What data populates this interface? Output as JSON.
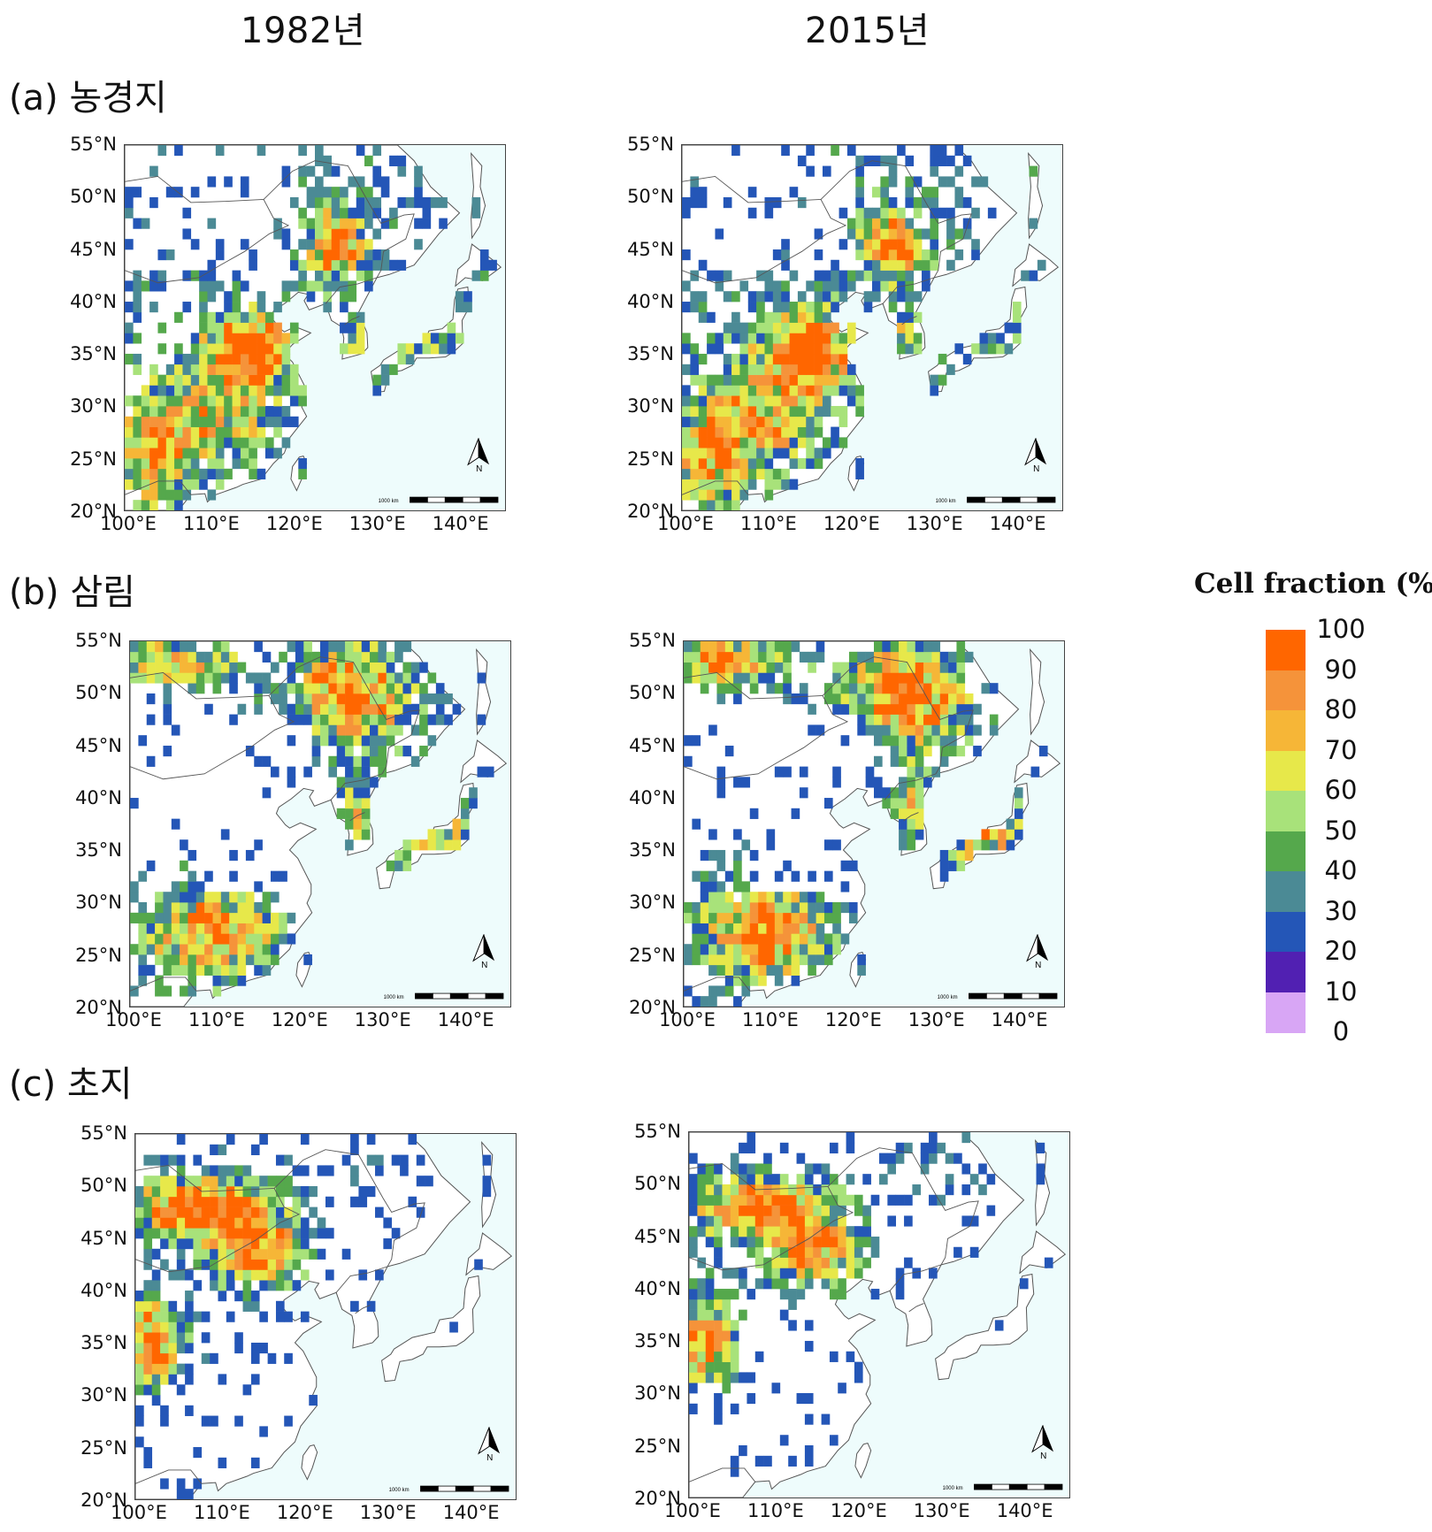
{
  "columns": [
    "1982년",
    "2015년"
  ],
  "rows": [
    {
      "label": "(a) 농경지",
      "key": "cropland"
    },
    {
      "label": "(b) 삼림",
      "key": "forest"
    },
    {
      "label": "(c) 초지",
      "key": "grassland"
    }
  ],
  "axes": {
    "lat_ticks": [
      "55°N",
      "50°N",
      "45°N",
      "40°N",
      "35°N",
      "30°N",
      "25°N",
      "20°N"
    ],
    "lon_ticks": [
      "100°E",
      "110°E",
      "120°E",
      "130°E",
      "140°E"
    ],
    "lat_range": [
      20,
      55
    ],
    "lon_range": [
      100,
      146
    ]
  },
  "scale_bar_label": "1000 km",
  "north_arrow_label": "N",
  "legend": {
    "title": "Cell fraction (%)",
    "labels": [
      "100",
      "90",
      "80",
      "70",
      "60",
      "50",
      "40",
      "30",
      "20",
      "10",
      "0"
    ],
    "colors": [
      "#ff6600",
      "#f5933a",
      "#f6b637",
      "#e7e84a",
      "#a8e27a",
      "#55a84c",
      "#4b8a95",
      "#2456b7",
      "#5120b2",
      "#d8a6f5"
    ]
  },
  "colors": {
    "ocean": "#eefcfc",
    "land": "#ffffff",
    "border": "#555555"
  }
}
